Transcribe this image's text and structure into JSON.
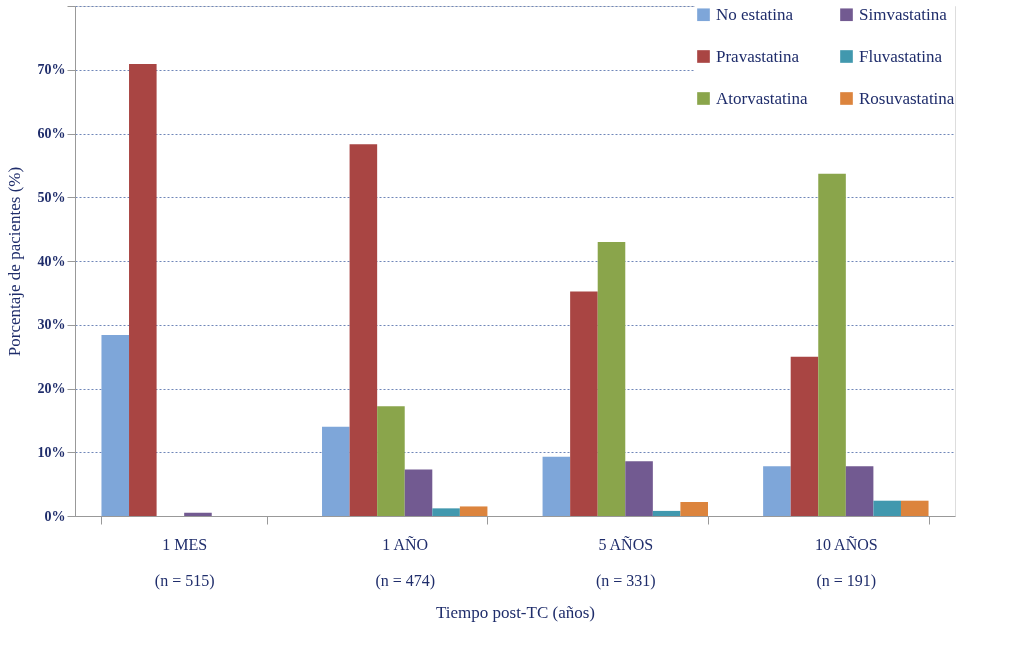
{
  "chart_data": {
    "type": "bar",
    "xlabel": "Tiempo post-TC (años)",
    "ylabel": "Porcentaje de pacientes  (%)",
    "categories": [
      "1 MES\n(n = 515)",
      "1 AÑO\n(n = 474)",
      "5 AÑOS\n(n = 331)",
      "10 AÑOS\n(n = 191)"
    ],
    "series": [
      {
        "name": "No estatina",
        "color": "#7ea6d9",
        "values": [
          28.4,
          14.0,
          9.3,
          7.8
        ]
      },
      {
        "name": "Pravastatina",
        "color": "#a94543",
        "values": [
          70.9,
          58.3,
          35.2,
          25.0
        ]
      },
      {
        "name": "Atorvastatina",
        "color": "#8aa54b",
        "values": [
          0,
          17.2,
          43.0,
          53.7
        ]
      },
      {
        "name": "Simvastatina",
        "color": "#725a91",
        "values": [
          0.5,
          7.3,
          8.6,
          7.8
        ]
      },
      {
        "name": "Fluvastatina",
        "color": "#4198ae",
        "values": [
          0,
          1.2,
          0.8,
          2.4
        ]
      },
      {
        "name": "Rosuvastatina",
        "color": "#dc843d",
        "values": [
          0,
          1.5,
          2.2,
          2.4
        ]
      }
    ],
    "ylim": [
      0,
      80
    ],
    "yticks": [
      {
        "value": 0,
        "label": "0%"
      },
      {
        "value": 10,
        "label": "10%"
      },
      {
        "value": 20,
        "label": "20%"
      },
      {
        "value": 30,
        "label": "30%"
      },
      {
        "value": 40,
        "label": "40%"
      },
      {
        "value": 50,
        "label": "50%"
      },
      {
        "value": 60,
        "label": "60%"
      },
      {
        "value": 70,
        "label": "70%"
      },
      {
        "value": 80,
        "label": null
      }
    ],
    "grid": "y",
    "legend": "top right"
  }
}
